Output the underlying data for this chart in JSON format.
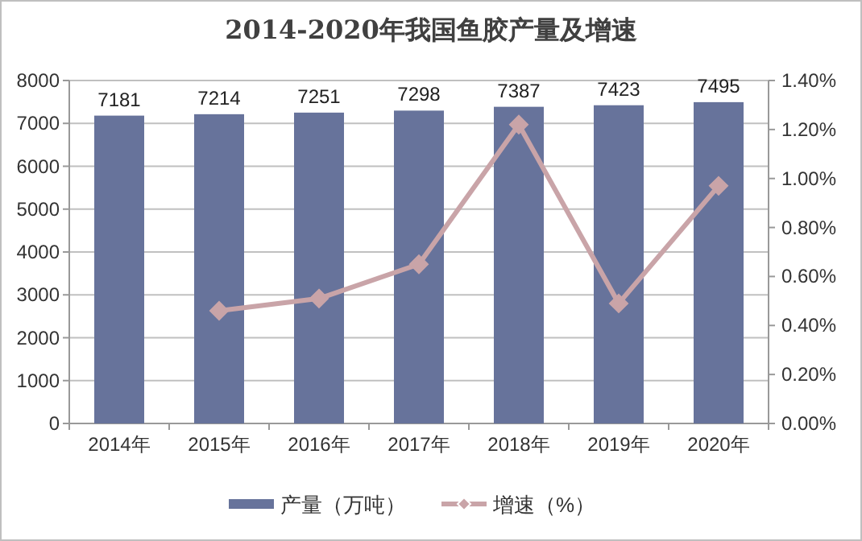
{
  "chart_data": {
    "type": "bar",
    "title": "2014-2020年我国鱼胶产量及增速",
    "categories": [
      "2014年",
      "2015年",
      "2016年",
      "2017年",
      "2018年",
      "2019年",
      "2020年"
    ],
    "series": [
      {
        "name": "产量（万吨）",
        "type": "bar",
        "color": "#67739b",
        "values": [
          7181,
          7214,
          7251,
          7298,
          7387,
          7423,
          7495
        ],
        "data_labels": true
      },
      {
        "name": "增速（%）",
        "type": "line",
        "axis": "y2",
        "color": "#c9a4a8",
        "marker": "diamond",
        "values": [
          null,
          0.46,
          0.51,
          0.65,
          1.22,
          0.49,
          0.97
        ]
      }
    ],
    "ylim": [
      0,
      8000
    ],
    "yticks": [
      0,
      1000,
      2000,
      3000,
      4000,
      5000,
      6000,
      7000,
      8000
    ],
    "y2lim": [
      0,
      1.4
    ],
    "y2ticks": [
      {
        "value": 0,
        "label": "0.00%"
      },
      {
        "value": 0.2,
        "label": "0.20%"
      },
      {
        "value": 0.4,
        "label": "0.40%"
      },
      {
        "value": 0.6,
        "label": "0.60%"
      },
      {
        "value": 0.8,
        "label": "0.80%"
      },
      {
        "value": 1.0,
        "label": "1.00%"
      },
      {
        "value": 1.2,
        "label": "1.20%"
      },
      {
        "value": 1.4,
        "label": "1.40%"
      }
    ],
    "grid": "y",
    "legend": "bottom"
  }
}
